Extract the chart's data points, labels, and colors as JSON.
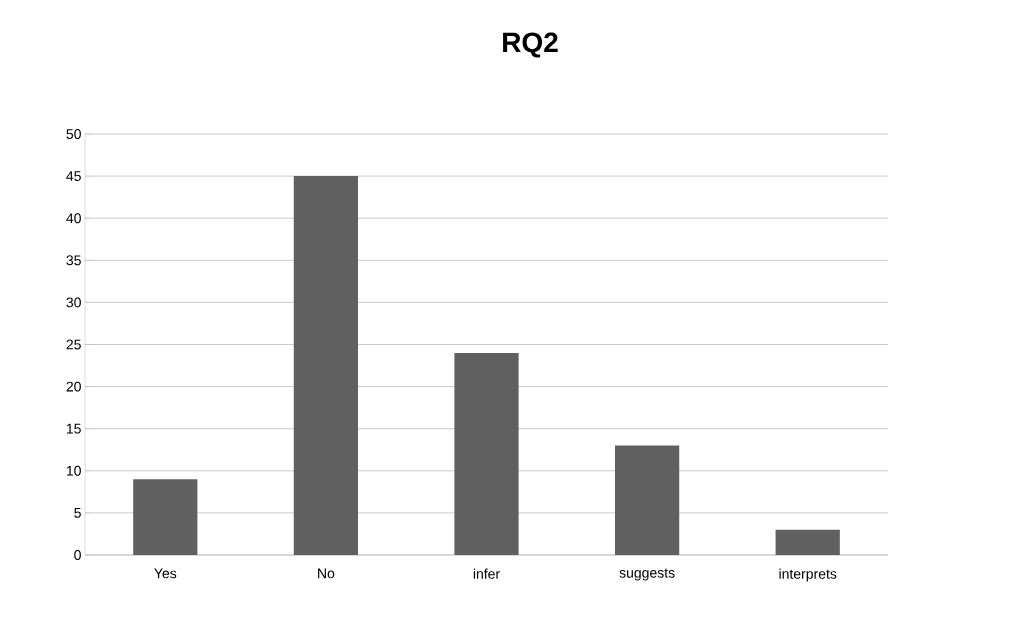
{
  "chart_data": {
    "type": "bar",
    "title": "RQ2",
    "categories": [
      "Yes",
      "No",
      "infer",
      "suggests",
      "interprets"
    ],
    "values": [
      9,
      45,
      24,
      13,
      3
    ],
    "color": "#606060",
    "ylim": [
      0,
      50
    ],
    "yticks": [
      0,
      5,
      10,
      15,
      20,
      25,
      30,
      35,
      40,
      45,
      50
    ],
    "grid": "y"
  }
}
